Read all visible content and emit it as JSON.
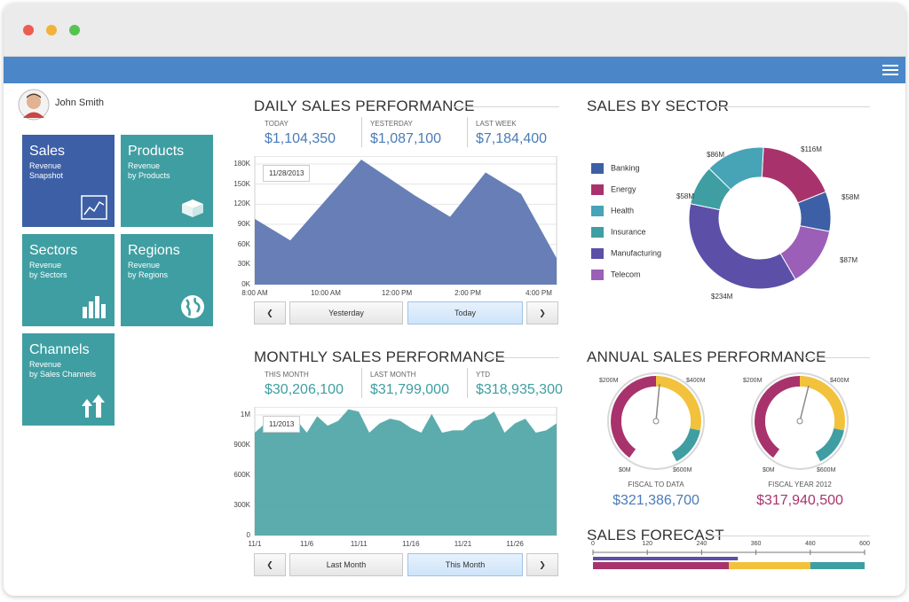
{
  "user": {
    "name": "John Smith"
  },
  "tiles": [
    {
      "name": "Sales",
      "sub1": "Revenue",
      "sub2": "Snapshot",
      "color": "#3d5fa6",
      "icon": "line-chart-icon"
    },
    {
      "name": "Products",
      "sub1": "Revenue",
      "sub2": "by Products",
      "color": "#3f9ea2",
      "icon": "box-icon"
    },
    {
      "name": "Sectors",
      "sub1": "Revenue",
      "sub2": "by Sectors",
      "color": "#3f9ea2",
      "icon": "bar-chart-icon"
    },
    {
      "name": "Regions",
      "sub1": "Revenue",
      "sub2": "by Regions",
      "color": "#3f9ea2",
      "icon": "globe-icon"
    },
    {
      "name": "Channels",
      "sub1": "Revenue",
      "sub2": "by Sales Channels",
      "color": "#3f9ea2",
      "icon": "arrows-icon"
    }
  ],
  "daily": {
    "title": "DAILY SALES PERFORMANCE",
    "kpis": [
      {
        "label": "TODAY",
        "value": "$1,104,350"
      },
      {
        "label": "YESTERDAY",
        "value": "$1,087,100"
      },
      {
        "label": "LAST WEEK",
        "value": "$7,184,400"
      }
    ],
    "date_label": "11/28/2013",
    "prev_label": "Yesterday",
    "next_label": "Today"
  },
  "monthly": {
    "title": "MONTHLY SALES PERFORMANCE",
    "kpis": [
      {
        "label": "THIS MONTH",
        "value": "$30,206,100"
      },
      {
        "label": "LAST MONTH",
        "value": "$31,799,000"
      },
      {
        "label": "YTD",
        "value": "$318,935,300"
      }
    ],
    "date_label": "11/2013",
    "prev_label": "Last Month",
    "next_label": "This Month"
  },
  "sector": {
    "title": "SALES BY SECTOR"
  },
  "annual": {
    "title": "ANNUAL SALES PERFORMANCE",
    "gauge1": {
      "caption": "FISCAL TO DATA",
      "value": "$321,386,700",
      "value_color": "#4a7cb8",
      "lbl_200": "$200M",
      "lbl_400": "$400M",
      "lbl_0": "$0M",
      "lbl_600": "$600M"
    },
    "gauge2": {
      "caption": "FISCAL YEAR 2012",
      "value": "$317,940,500",
      "value_color": "#a8336c",
      "lbl_200": "$200M",
      "lbl_400": "$400M",
      "lbl_0": "$0M",
      "lbl_600": "$600M"
    }
  },
  "forecast": {
    "title": "SALES FORECAST",
    "ticks": [
      "0",
      "120",
      "240",
      "360",
      "480",
      "600"
    ]
  },
  "chart_data": [
    {
      "type": "area",
      "name": "daily",
      "x_tick_labels": [
        "8:00 AM",
        "10:00 AM",
        "12:00 PM",
        "2:00 PM",
        "4:00 PM"
      ],
      "y_tick_labels": [
        "0K",
        "30K",
        "60K",
        "90K",
        "120K",
        "150K",
        "180K"
      ],
      "ylim": [
        0,
        180000
      ],
      "x_hours": [
        8,
        9,
        11,
        12.5,
        13.5,
        14.5,
        15.5,
        16.5
      ],
      "values": [
        92000,
        62000,
        175000,
        125000,
        95000,
        157000,
        127000,
        37000
      ],
      "color": "#5a74b0"
    },
    {
      "type": "area",
      "name": "monthly",
      "x_tick_labels": [
        "11/1",
        "11/6",
        "11/11",
        "11/16",
        "11/21",
        "11/26"
      ],
      "y_tick_labels": [
        "0",
        "300K",
        "600K",
        "900K",
        "1M"
      ],
      "ylim": [
        0,
        1100000
      ],
      "x_days": [
        1,
        2,
        3,
        4,
        5,
        6,
        7,
        8,
        9,
        10,
        11,
        12,
        13,
        14,
        15,
        16,
        17,
        18,
        19,
        20,
        21,
        22,
        23,
        24,
        25,
        26,
        27,
        28,
        29,
        30
      ],
      "values": [
        880000,
        960000,
        940000,
        900000,
        990000,
        880000,
        1020000,
        940000,
        980000,
        1080000,
        1060000,
        880000,
        960000,
        1000000,
        980000,
        920000,
        880000,
        1040000,
        880000,
        900000,
        900000,
        980000,
        1000000,
        1060000,
        880000,
        960000,
        1000000,
        880000,
        900000,
        960000
      ],
      "color": "#4ea5a7"
    },
    {
      "type": "pie",
      "name": "sector",
      "labels": [
        "Banking",
        "Energy",
        "Health",
        "Insurance",
        "Manufacturing",
        "Telecom"
      ],
      "values": [
        58,
        116,
        86,
        58,
        234,
        87
      ],
      "value_labels": [
        "$58M",
        "$116M",
        "$86M",
        "$58M",
        "$234M",
        "$87M"
      ],
      "colors": [
        "#3d5fa6",
        "#a8336c",
        "#47a3b6",
        "#3f9ea2",
        "#5b4fa8",
        "#9b5fb8"
      ]
    },
    {
      "type": "bar",
      "name": "forecast",
      "xlim": [
        0,
        600
      ],
      "series": [
        {
          "values": [
            320
          ],
          "color": "#5b4fa8"
        },
        {
          "values": [
            300
          ],
          "color": "#a8336c"
        },
        {
          "values": [
            180
          ],
          "color": "#f3c23c"
        },
        {
          "values": [
            120
          ],
          "color": "#3f9ea2"
        }
      ]
    }
  ]
}
